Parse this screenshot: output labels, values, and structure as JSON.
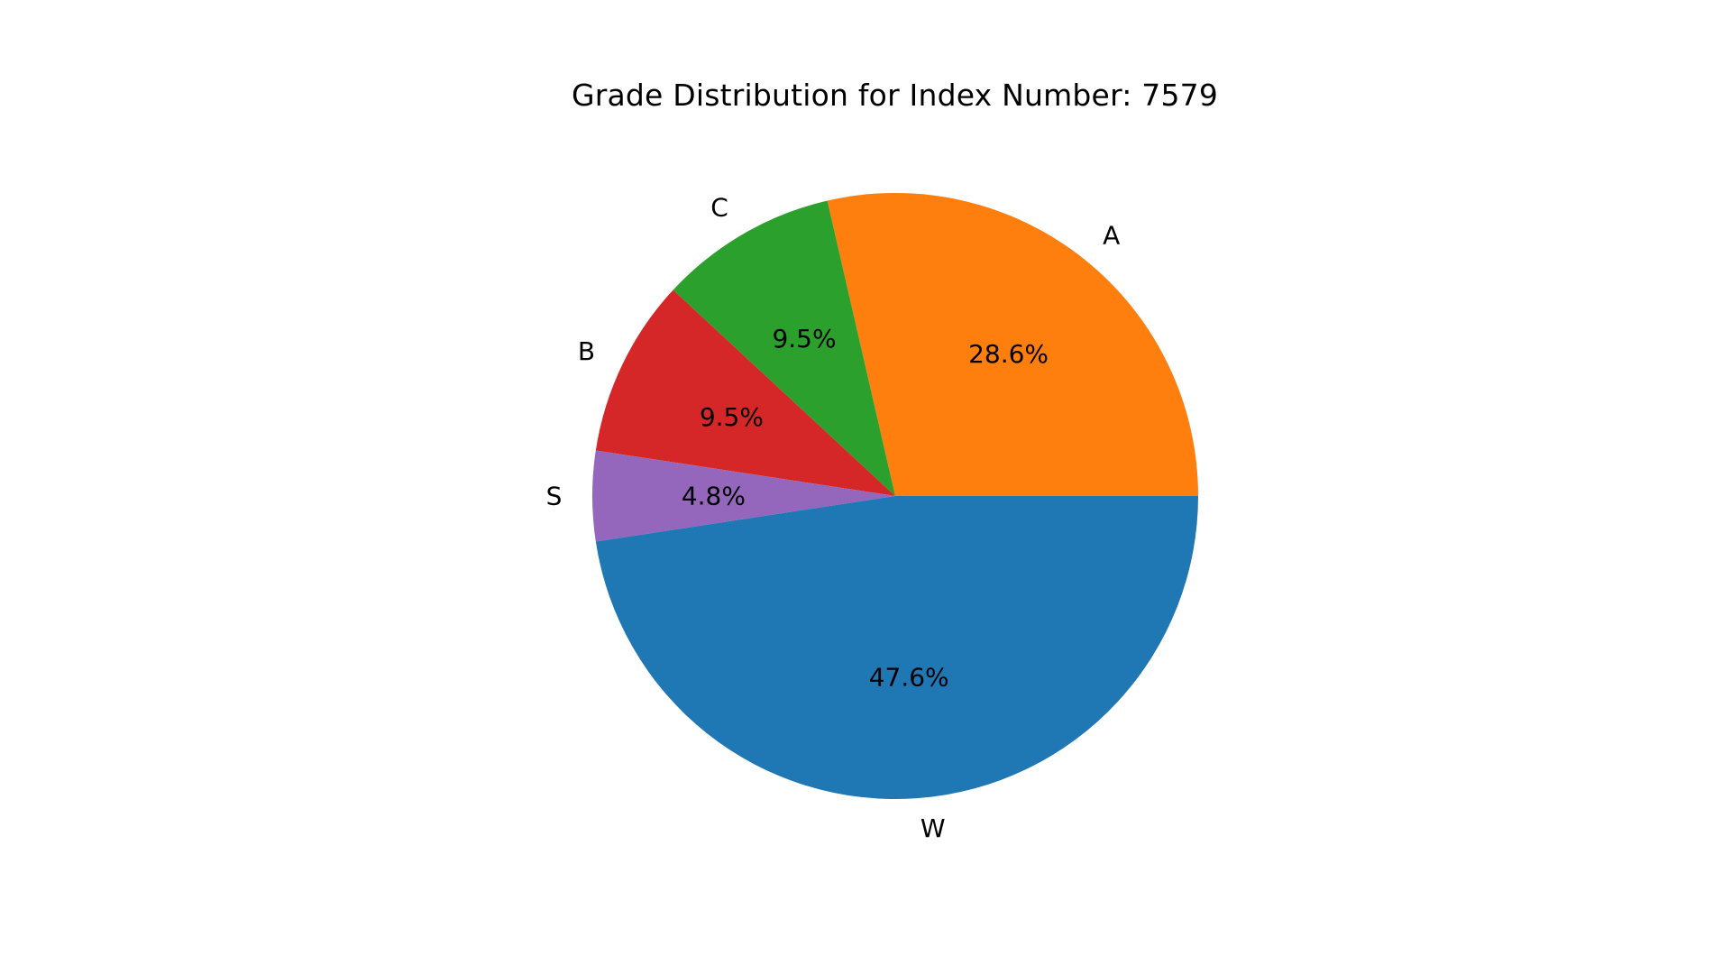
{
  "chart_data": {
    "type": "pie",
    "title": "Grade Distribution for Index Number: 7579",
    "slices": [
      {
        "label": "A",
        "value": 28.6,
        "pct_text": "28.6%",
        "color": "#ff7f0e"
      },
      {
        "label": "C",
        "value": 9.5,
        "pct_text": "9.5%",
        "color": "#2ca02c"
      },
      {
        "label": "B",
        "value": 9.5,
        "pct_text": "9.5%",
        "color": "#d62728"
      },
      {
        "label": "S",
        "value": 4.8,
        "pct_text": "4.8%",
        "color": "#9467bd"
      },
      {
        "label": "W",
        "value": 47.6,
        "pct_text": "47.6%",
        "color": "#1f77b4"
      }
    ],
    "legend": "none"
  }
}
